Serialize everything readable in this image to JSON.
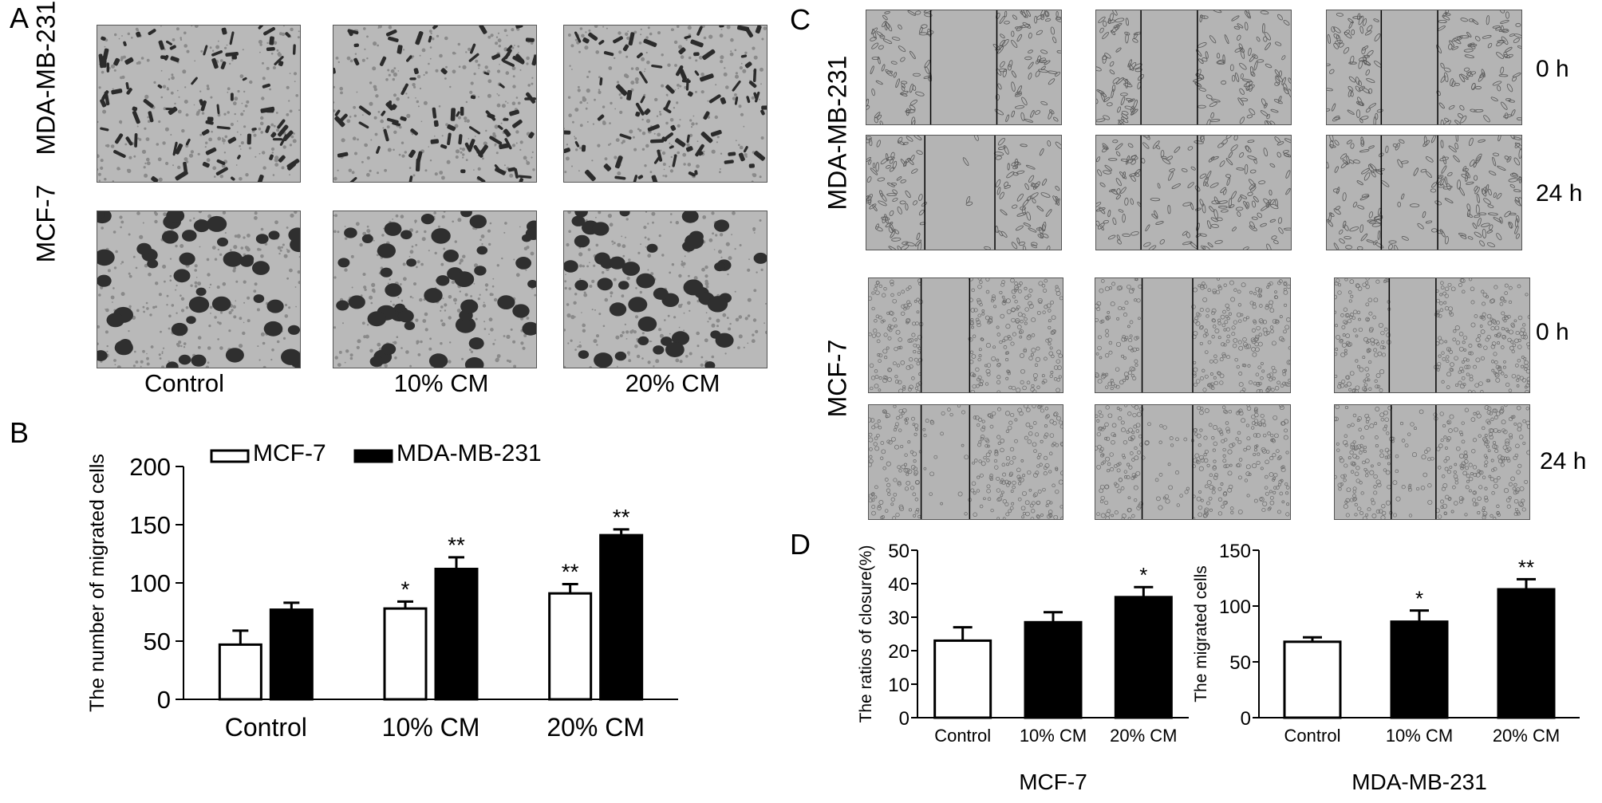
{
  "panel_A": {
    "letter": "A",
    "row_labels": [
      "MDA-MB-231",
      "MCF-7"
    ],
    "col_labels": [
      "Control",
      "10% CM",
      "20% CM"
    ]
  },
  "panel_C": {
    "letter": "C",
    "row_labels": [
      "MDA-MB-231",
      "MCF-7"
    ],
    "time_labels": [
      "0 h",
      "24 h",
      "0 h",
      "24 h"
    ]
  },
  "panel_B": {
    "letter": "B",
    "chart_data": {
      "type": "bar",
      "categories": [
        "Control",
        "10% CM",
        "20% CM"
      ],
      "ylabel": "The number of migrated cells",
      "ylim": [
        0,
        200
      ],
      "yticks": [
        0,
        50,
        100,
        150,
        200
      ],
      "legend": "top",
      "series": [
        {
          "name": "MCF-7",
          "color": "#ffffff",
          "values": [
            47,
            78,
            91
          ],
          "errors": [
            12,
            6,
            8
          ],
          "significance": [
            "",
            "*",
            "**"
          ]
        },
        {
          "name": "MDA-MB-231",
          "color": "#000000",
          "values": [
            77,
            112,
            141
          ],
          "errors": [
            6,
            10,
            5
          ],
          "significance": [
            "",
            "**",
            "**"
          ]
        }
      ]
    }
  },
  "panel_D": {
    "letter": "D",
    "chart_data": [
      {
        "type": "bar",
        "categories": [
          "Control",
          "10%  CM",
          "20%  CM"
        ],
        "ylabel": "The ratios of closure(%)",
        "xlabel": "MCF-7",
        "ylim": [
          0,
          50
        ],
        "yticks": [
          0,
          10,
          20,
          30,
          40,
          50
        ],
        "values": [
          23,
          28.5,
          36
        ],
        "errors": [
          4,
          3,
          3
        ],
        "colors": [
          "#ffffff",
          "#000000",
          "#000000"
        ],
        "significance": [
          "",
          "",
          "*"
        ]
      },
      {
        "type": "bar",
        "categories": [
          "Control",
          "10%  CM",
          "20%  CM"
        ],
        "ylabel": "The migrated cells",
        "xlabel": "MDA-MB-231",
        "ylim": [
          0,
          150
        ],
        "yticks": [
          0,
          50,
          100,
          150
        ],
        "values": [
          68,
          86,
          115
        ],
        "errors": [
          4,
          10,
          9
        ],
        "colors": [
          "#ffffff",
          "#000000",
          "#000000"
        ],
        "significance": [
          "",
          "*",
          "**"
        ]
      }
    ]
  },
  "colors": {
    "bar_filled": "#000000",
    "bar_empty": "#ffffff",
    "micrograph_bg": "#c8c8c8"
  }
}
